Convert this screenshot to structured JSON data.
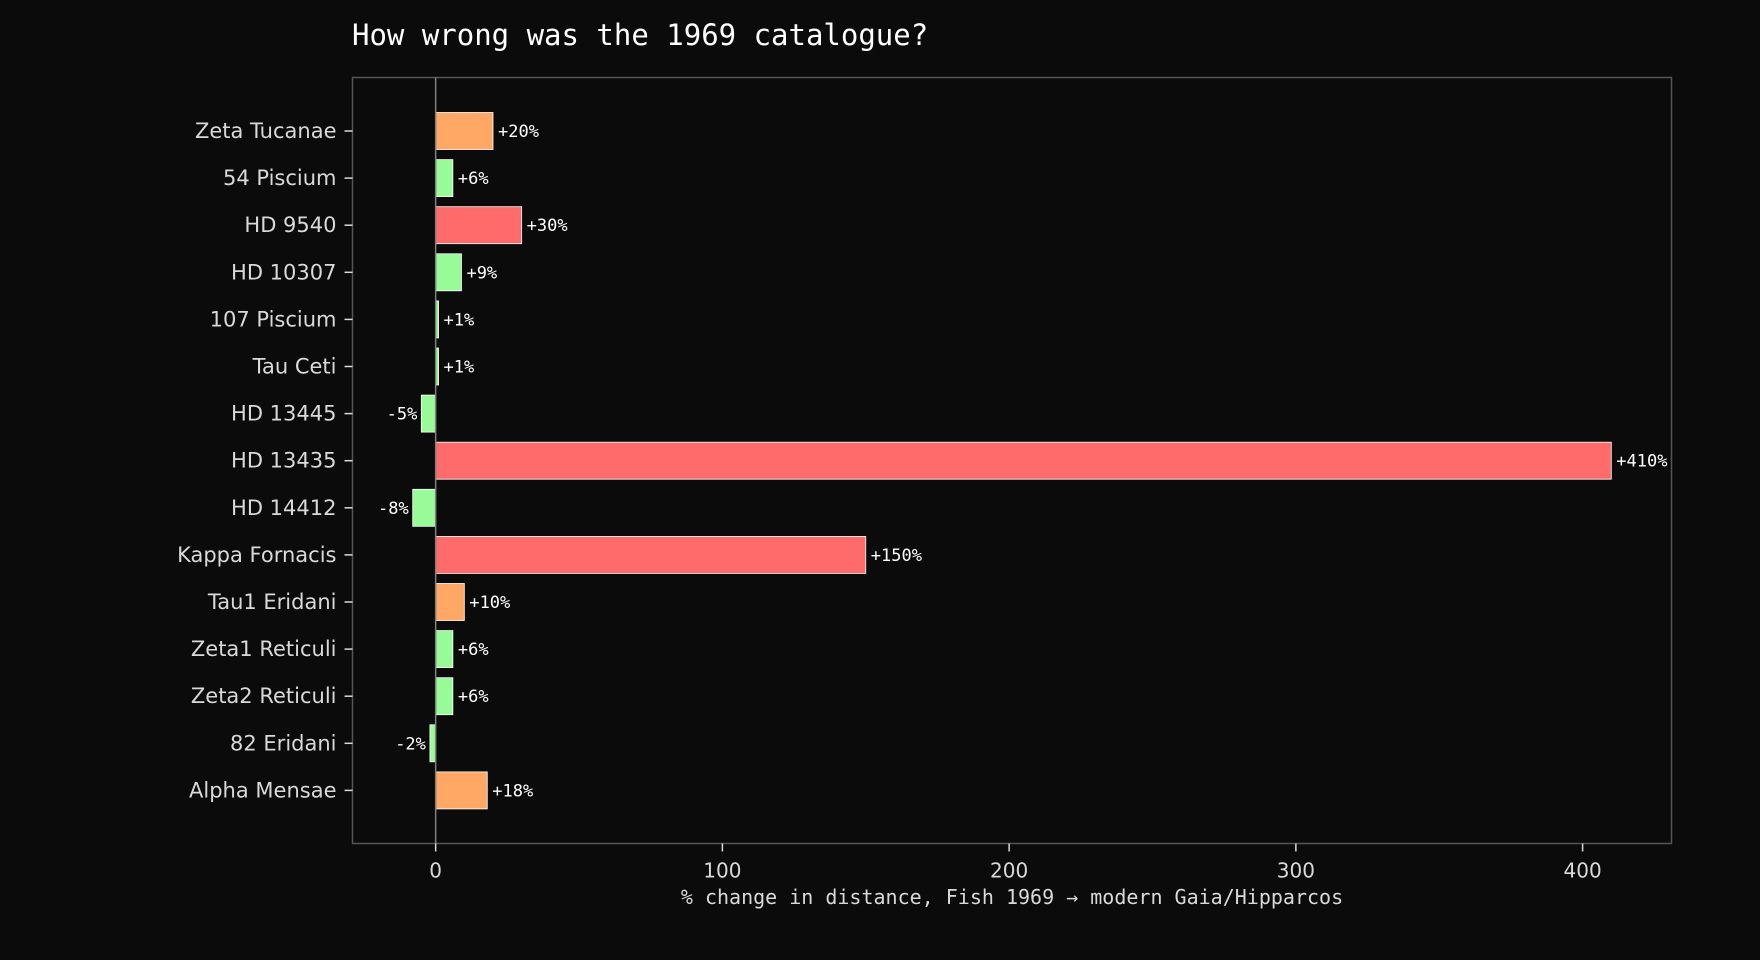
{
  "chart_data": {
    "type": "bar",
    "orientation": "horizontal",
    "title": "How wrong was the 1969 catalogue?",
    "xlabel": "% change in distance, Fish 1969 → modern Gaia/Hipparcos",
    "ylabel": "",
    "xlim": [
      -29,
      431
    ],
    "xticks": [
      0,
      100,
      200,
      300,
      400
    ],
    "grid": false,
    "categories": [
      "Zeta Tucanae",
      "54 Piscium",
      "HD 9540",
      "HD 10307",
      "107 Piscium",
      "Tau Ceti",
      "HD 13445",
      "HD 13435",
      "HD 14412",
      "Kappa Fornacis",
      "Tau1 Eridani",
      "Zeta1 Reticuli",
      "Zeta2 Reticuli",
      "82 Eridani",
      "Alpha Mensae"
    ],
    "values": [
      20,
      6,
      30,
      9,
      1,
      1,
      -5,
      410,
      -8,
      150,
      10,
      6,
      6,
      -2,
      18
    ],
    "data_labels": [
      "+20%",
      "+6%",
      "+30%",
      "+9%",
      "+1%",
      "+1%",
      "-5%",
      "+410%",
      "-8%",
      "+150%",
      "+10%",
      "+6%",
      "+6%",
      "-2%",
      "+18%"
    ],
    "colors": {
      "low": "#98fb98",
      "medium": "#ffa866",
      "high": "#ff6b6b",
      "zero_line": "#808080",
      "frame": "#555555",
      "bar_edge": "#ffffff"
    },
    "bar_color_groups": [
      "medium",
      "low",
      "high",
      "low",
      "low",
      "low",
      "low",
      "high",
      "low",
      "high",
      "medium",
      "low",
      "low",
      "low",
      "medium"
    ]
  }
}
